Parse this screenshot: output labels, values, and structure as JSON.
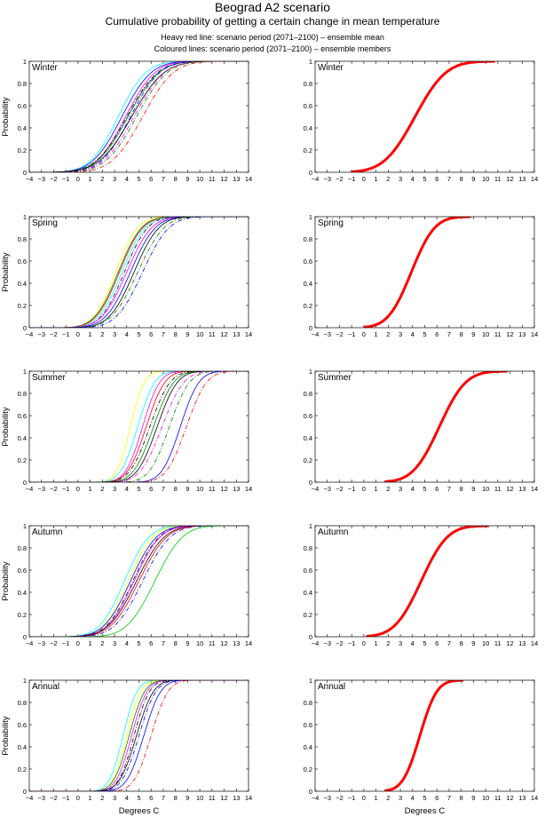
{
  "header": {
    "title": "Beograd A2 scenario",
    "subtitle": "Cumulative probability of getting a certain change in mean temperature",
    "note1": "Heavy red line: scenario period (2071–2100) – ensemble mean",
    "note2": "Coloured lines: scenario period (2071–2100) – ensemble members"
  },
  "chart_data": [
    {
      "type": "line",
      "panel": "members",
      "season": "Winter",
      "mean": 4.2,
      "sd": 2.0,
      "members": [
        {
          "mu": 3.3,
          "sd": 1.8,
          "color": "#00ffff",
          "dash": "solid"
        },
        {
          "mu": 3.6,
          "sd": 1.9,
          "color": "#0000ff",
          "dash": "solid"
        },
        {
          "mu": 3.9,
          "sd": 1.9,
          "color": "#ff00ff",
          "dash": "solid"
        },
        {
          "mu": 4.0,
          "sd": 2.0,
          "color": "#000000",
          "dash": "dashdot"
        },
        {
          "mu": 4.1,
          "sd": 2.0,
          "color": "#008000",
          "dash": "solid"
        },
        {
          "mu": 4.3,
          "sd": 1.9,
          "color": "#0000ff",
          "dash": "dashdot"
        },
        {
          "mu": 4.4,
          "sd": 2.1,
          "color": "#000000",
          "dash": "solid"
        },
        {
          "mu": 4.6,
          "sd": 2.0,
          "color": "#ff00ff",
          "dash": "dashdot"
        },
        {
          "mu": 4.8,
          "sd": 2.0,
          "color": "#008000",
          "dash": "dashdot"
        },
        {
          "mu": 5.3,
          "sd": 2.0,
          "color": "#ff0000",
          "dash": "dashdot"
        }
      ],
      "xlim": [
        -4,
        14
      ],
      "ylim": [
        0,
        1
      ],
      "ylabel": "Probability",
      "xlabel": ""
    },
    {
      "type": "line",
      "panel": "mean",
      "season": "Winter",
      "mean": 4.2,
      "sd": 2.0,
      "members": [],
      "xlim": [
        -4,
        14
      ],
      "ylim": [
        0,
        1
      ],
      "ylabel": "",
      "xlabel": ""
    },
    {
      "type": "line",
      "panel": "members",
      "season": "Spring",
      "mean": 3.9,
      "sd": 1.5,
      "members": [
        {
          "mu": 3.1,
          "sd": 1.4,
          "color": "#ffff00",
          "dash": "solid"
        },
        {
          "mu": 3.3,
          "sd": 1.5,
          "color": "#008000",
          "dash": "solid"
        },
        {
          "mu": 3.4,
          "sd": 1.5,
          "color": "#ff0000",
          "dash": "solid"
        },
        {
          "mu": 3.6,
          "sd": 1.5,
          "color": "#00ffff",
          "dash": "solid"
        },
        {
          "mu": 3.8,
          "sd": 1.5,
          "color": "#000000",
          "dash": "dashdot"
        },
        {
          "mu": 4.0,
          "sd": 1.6,
          "color": "#ff00ff",
          "dash": "solid"
        },
        {
          "mu": 4.3,
          "sd": 1.6,
          "color": "#0000ff",
          "dash": "solid"
        },
        {
          "mu": 4.6,
          "sd": 1.6,
          "color": "#000000",
          "dash": "solid"
        },
        {
          "mu": 4.9,
          "sd": 1.7,
          "color": "#008000",
          "dash": "dashdot"
        },
        {
          "mu": 5.3,
          "sd": 1.7,
          "color": "#0000ff",
          "dash": "dashdot"
        }
      ],
      "xlim": [
        -4,
        14
      ],
      "ylim": [
        0,
        1
      ],
      "ylabel": "Probability",
      "xlabel": ""
    },
    {
      "type": "line",
      "panel": "mean",
      "season": "Spring",
      "mean": 3.9,
      "sd": 1.5,
      "members": [],
      "xlim": [
        -4,
        14
      ],
      "ylim": [
        0,
        1
      ],
      "ylabel": "",
      "xlabel": ""
    },
    {
      "type": "line",
      "panel": "members",
      "season": "Summer",
      "mean": 6.2,
      "sd": 1.7,
      "members": [
        {
          "mu": 4.3,
          "sd": 0.9,
          "color": "#ffff00",
          "dash": "solid"
        },
        {
          "mu": 4.9,
          "sd": 1.1,
          "color": "#00ffff",
          "dash": "solid"
        },
        {
          "mu": 5.3,
          "sd": 1.1,
          "color": "#ff00ff",
          "dash": "solid"
        },
        {
          "mu": 5.6,
          "sd": 1.2,
          "color": "#ff0000",
          "dash": "solid"
        },
        {
          "mu": 5.9,
          "sd": 1.3,
          "color": "#000000",
          "dash": "dashdot"
        },
        {
          "mu": 6.2,
          "sd": 1.3,
          "color": "#008000",
          "dash": "solid"
        },
        {
          "mu": 6.5,
          "sd": 1.3,
          "color": "#000000",
          "dash": "solid"
        },
        {
          "mu": 6.9,
          "sd": 1.4,
          "color": "#ff00ff",
          "dash": "dashdot"
        },
        {
          "mu": 7.5,
          "sd": 1.3,
          "color": "#008000",
          "dash": "dashdot"
        },
        {
          "mu": 8.4,
          "sd": 1.2,
          "color": "#0000ff",
          "dash": "solid"
        },
        {
          "mu": 8.9,
          "sd": 1.3,
          "color": "#ff0000",
          "dash": "dashdot"
        }
      ],
      "xlim": [
        -4,
        14
      ],
      "ylim": [
        0,
        1
      ],
      "ylabel": "Probability",
      "xlabel": ""
    },
    {
      "type": "line",
      "panel": "mean",
      "season": "Summer",
      "mean": 6.2,
      "sd": 1.7,
      "members": [],
      "xlim": [
        -4,
        14
      ],
      "ylim": [
        0,
        1
      ],
      "ylabel": "",
      "xlabel": ""
    },
    {
      "type": "line",
      "panel": "members",
      "season": "Autumn",
      "mean": 4.7,
      "sd": 1.7,
      "members": [
        {
          "mu": 3.8,
          "sd": 1.6,
          "color": "#00ffff",
          "dash": "solid"
        },
        {
          "mu": 4.1,
          "sd": 1.6,
          "color": "#ffff00",
          "dash": "solid"
        },
        {
          "mu": 4.3,
          "sd": 1.7,
          "color": "#0000ff",
          "dash": "solid"
        },
        {
          "mu": 4.5,
          "sd": 1.7,
          "color": "#000000",
          "dash": "dashdot"
        },
        {
          "mu": 4.6,
          "sd": 1.7,
          "color": "#ff00ff",
          "dash": "solid"
        },
        {
          "mu": 4.8,
          "sd": 1.8,
          "color": "#000000",
          "dash": "solid"
        },
        {
          "mu": 5.0,
          "sd": 1.8,
          "color": "#ff0000",
          "dash": "solid"
        },
        {
          "mu": 5.3,
          "sd": 1.8,
          "color": "#0000ff",
          "dash": "dashdot"
        },
        {
          "mu": 6.3,
          "sd": 1.8,
          "color": "#00cc00",
          "dash": "solid"
        }
      ],
      "xlim": [
        -4,
        14
      ],
      "ylim": [
        0,
        1
      ],
      "ylabel": "Probability",
      "xlabel": ""
    },
    {
      "type": "line",
      "panel": "mean",
      "season": "Autumn",
      "mean": 4.7,
      "sd": 1.7,
      "members": [],
      "xlim": [
        -4,
        14
      ],
      "ylim": [
        0,
        1
      ],
      "ylabel": "",
      "xlabel": ""
    },
    {
      "type": "line",
      "panel": "members",
      "season": "Annual",
      "mean": 4.6,
      "sd": 1.1,
      "members": [
        {
          "mu": 3.7,
          "sd": 0.9,
          "color": "#00ffff",
          "dash": "solid"
        },
        {
          "mu": 4.0,
          "sd": 0.9,
          "color": "#ffff00",
          "dash": "solid"
        },
        {
          "mu": 4.2,
          "sd": 1.0,
          "color": "#008000",
          "dash": "solid"
        },
        {
          "mu": 4.4,
          "sd": 1.0,
          "color": "#ff00ff",
          "dash": "solid"
        },
        {
          "mu": 4.6,
          "sd": 1.0,
          "color": "#000000",
          "dash": "dashdot"
        },
        {
          "mu": 4.8,
          "sd": 1.1,
          "color": "#000000",
          "dash": "solid"
        },
        {
          "mu": 5.0,
          "sd": 1.1,
          "color": "#0000ff",
          "dash": "dashdot"
        },
        {
          "mu": 5.4,
          "sd": 1.1,
          "color": "#0000ff",
          "dash": "solid"
        },
        {
          "mu": 6.0,
          "sd": 1.1,
          "color": "#ff0000",
          "dash": "dashdot"
        }
      ],
      "xlim": [
        -4,
        14
      ],
      "ylim": [
        0,
        1
      ],
      "ylabel": "Probability",
      "xlabel": "Degrees C"
    },
    {
      "type": "line",
      "panel": "mean",
      "season": "Annual",
      "mean": 4.6,
      "sd": 1.1,
      "members": [],
      "xlim": [
        -4,
        14
      ],
      "ylim": [
        0,
        1
      ],
      "ylabel": "",
      "xlabel": "Degrees C"
    }
  ],
  "colors": {
    "mean_line": "#ff0000",
    "axes": "#000000"
  }
}
